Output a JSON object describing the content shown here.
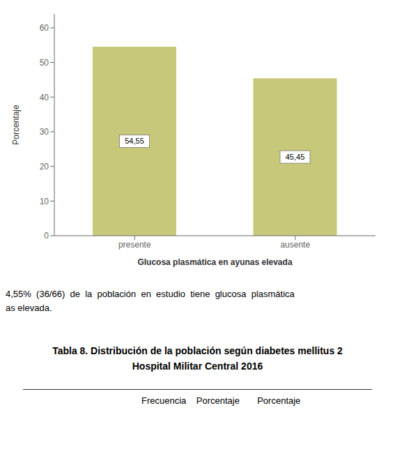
{
  "chart_data": {
    "type": "bar",
    "categories": [
      "presente",
      "ausente"
    ],
    "values": [
      54.55,
      45.45
    ],
    "value_labels": [
      "54,55",
      "45,45"
    ],
    "data_labels": true,
    "color": "#c8c87a",
    "xlabel": "Glucosa plasmática en ayunas elevada",
    "ylabel": "Porcentaje",
    "ylim": [
      0,
      64
    ],
    "yticks": [
      0,
      10,
      20,
      30,
      40,
      50,
      60
    ],
    "grid": false,
    "annotations": [
      "4,55%  (36/66)  de  la  población  en  estudio  tiene  glucosa  plasmática",
      "as elevada.",
      "Tabla 8. Distribución de la población según diabetes mellitus 2",
      "Hospital Militar Central 2016",
      "Frecuencia    Porcentaje       Porcentaje"
    ]
  }
}
